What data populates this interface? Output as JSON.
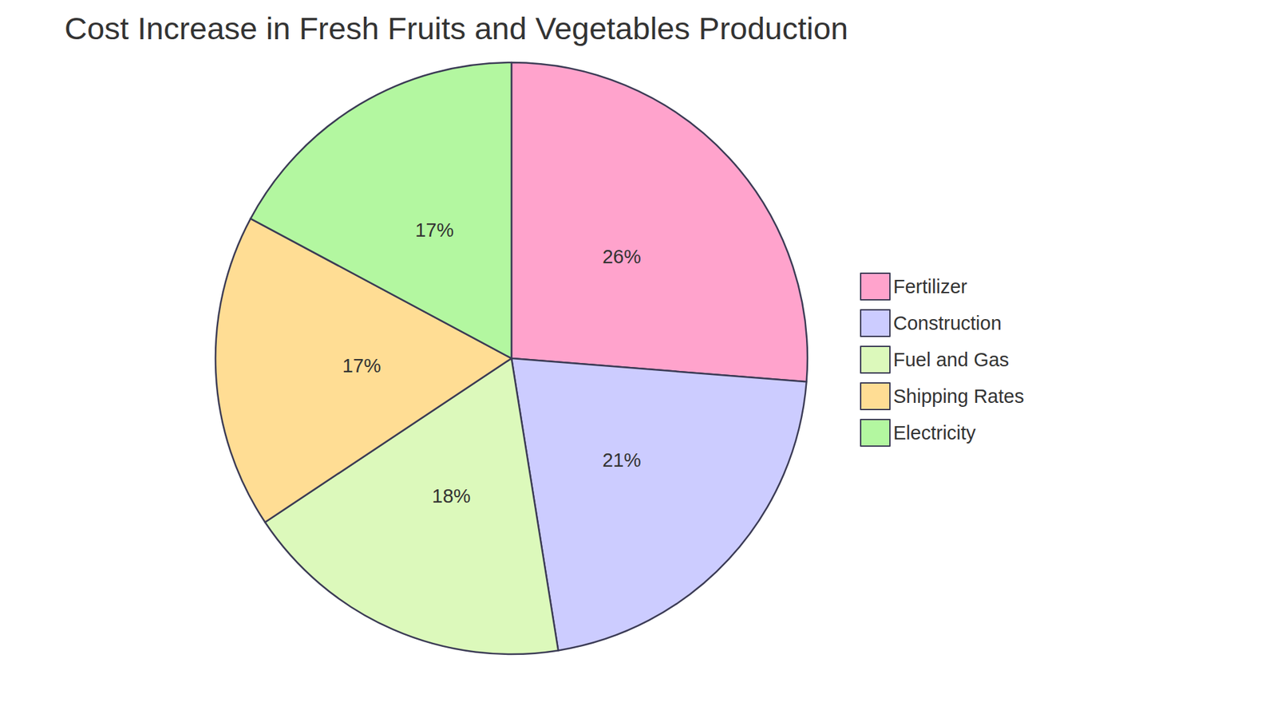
{
  "chart_data": {
    "type": "pie",
    "title": "Cost Increase in Fresh Fruits and Vegetables Production",
    "categories": [
      "Fertilizer",
      "Construction",
      "Fuel and Gas",
      "Shipping Rates",
      "Electricity"
    ],
    "values": [
      26,
      21,
      18,
      17,
      17
    ],
    "value_labels": [
      "26%",
      "21%",
      "18%",
      "17%",
      "17%"
    ],
    "colors": [
      "#ffa3cc",
      "#ccccff",
      "#dcf9bb",
      "#ffdd94",
      "#b3f7a0"
    ],
    "legend": "right",
    "data_labels": true
  }
}
